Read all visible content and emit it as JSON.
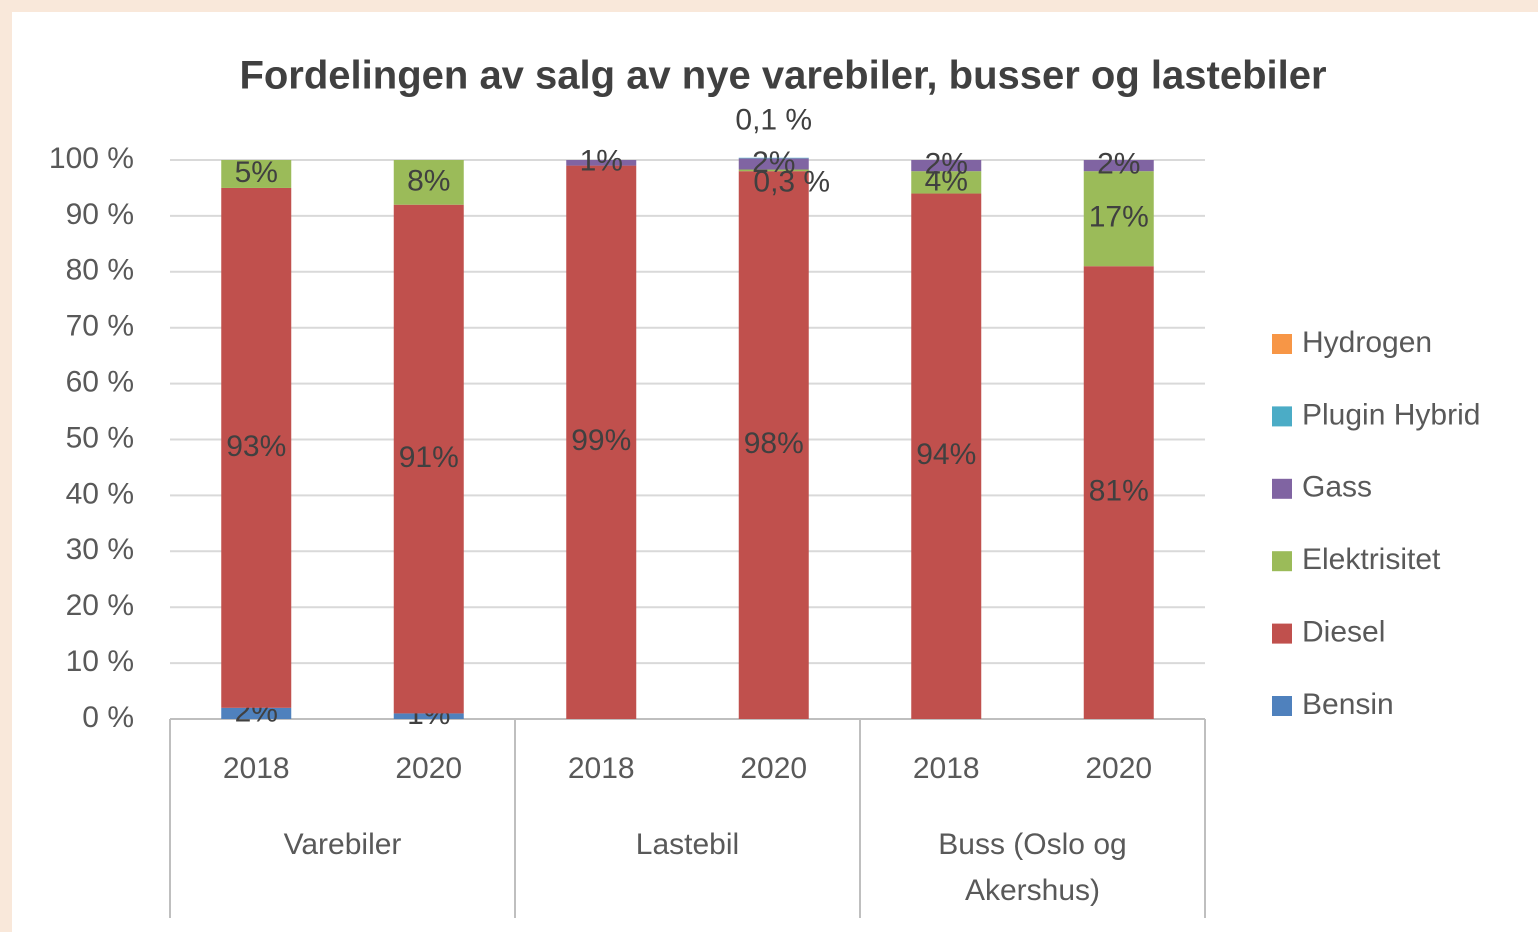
{
  "chart_data": {
    "type": "stacked_bar",
    "title": "Fordelingen av salg av nye varebiler, busser og lastebiler",
    "categories": [
      "2018",
      "2020",
      "2018",
      "2020",
      "2018",
      "2020"
    ],
    "groups": [
      "Varebiler",
      "Lastebil",
      "Buss (Oslo og Akershus)"
    ],
    "series": [
      {
        "name": "Bensin",
        "color": "#4f81bd",
        "values": [
          2,
          1,
          null,
          null,
          null,
          null
        ],
        "value_labels": [
          "2%",
          "1%",
          null,
          null,
          null,
          null
        ]
      },
      {
        "name": "Diesel",
        "color": "#c0504d",
        "values": [
          93,
          91,
          99,
          98,
          94,
          81
        ],
        "value_labels": [
          "93%",
          "91%",
          "99%",
          "98%",
          "94%",
          "81%"
        ]
      },
      {
        "name": "Elektrisitet",
        "color": "#9bbb59",
        "values": [
          5,
          8,
          null,
          0.3,
          4,
          17
        ],
        "value_labels": [
          "5%",
          "8%",
          null,
          "0,3 %",
          "4%",
          "17%"
        ]
      },
      {
        "name": "Gass",
        "color": "#8064a2",
        "values": [
          null,
          null,
          1,
          2,
          2,
          2
        ],
        "value_labels": [
          null,
          null,
          "1%",
          "2%",
          "2%",
          "2%"
        ]
      },
      {
        "name": "Plugin Hybrid",
        "color": "#4bacc6",
        "values": [
          null,
          null,
          null,
          0.1,
          null,
          null
        ],
        "value_labels": [
          null,
          null,
          null,
          "0,1 %",
          null,
          null
        ]
      },
      {
        "name": "Hydrogen",
        "color": "#f79646",
        "values": [
          null,
          null,
          null,
          null,
          null,
          null
        ],
        "value_labels": [
          null,
          null,
          null,
          null,
          null,
          null
        ]
      }
    ],
    "ylim": [
      0,
      100
    ],
    "yticks": [
      {
        "value": 0,
        "label": "0 %"
      },
      {
        "value": 10,
        "label": "10 %"
      },
      {
        "value": 20,
        "label": "20 %"
      },
      {
        "value": 30,
        "label": "30 %"
      },
      {
        "value": 40,
        "label": "40 %"
      },
      {
        "value": 50,
        "label": "50 %"
      },
      {
        "value": 60,
        "label": "60 %"
      },
      {
        "value": 70,
        "label": "70 %"
      },
      {
        "value": 80,
        "label": "80 %"
      },
      {
        "value": 90,
        "label": "90 %"
      },
      {
        "value": 100,
        "label": "100 %"
      }
    ],
    "grid": true,
    "legend": "right"
  }
}
